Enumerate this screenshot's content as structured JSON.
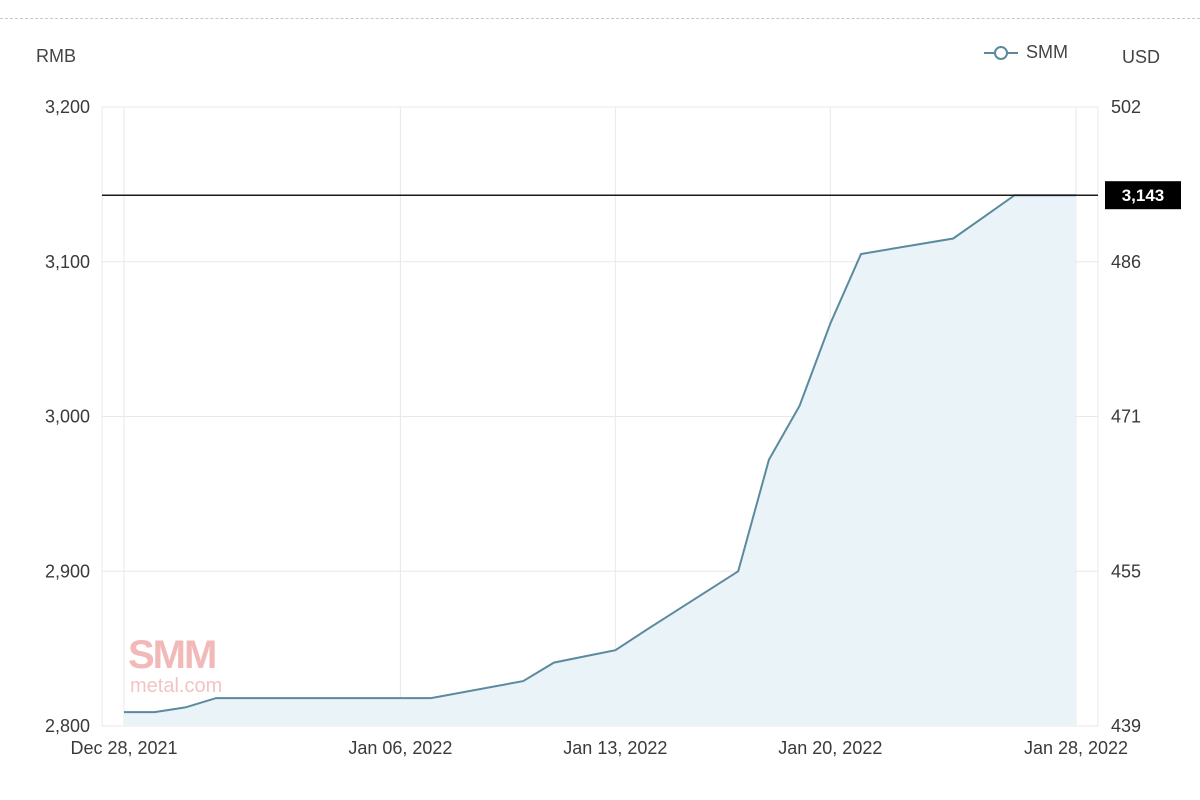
{
  "labels": {
    "left_unit": "RMB",
    "right_unit": "USD"
  },
  "legend": {
    "label": "SMM",
    "icon": "circle-line-icon"
  },
  "watermark": {
    "brand": "SMM",
    "domain": "metal.com"
  },
  "colors": {
    "line": "#5b8a9e",
    "area_fill": "#eaf3f7",
    "grid": "#e8e8e8",
    "reference_line": "#1a1a1a",
    "badge_bg": "#000000",
    "badge_text": "#ffffff"
  },
  "chart_data": {
    "type": "area",
    "series": [
      {
        "name": "SMM",
        "x": [
          "2021-12-28",
          "2021-12-29",
          "2021-12-30",
          "2021-12-31",
          "2022-01-04",
          "2022-01-05",
          "2022-01-06",
          "2022-01-07",
          "2022-01-10",
          "2022-01-11",
          "2022-01-12",
          "2022-01-13",
          "2022-01-14",
          "2022-01-17",
          "2022-01-18",
          "2022-01-19",
          "2022-01-20",
          "2022-01-21",
          "2022-01-24",
          "2022-01-25",
          "2022-01-26",
          "2022-01-27",
          "2022-01-28"
        ],
        "values": [
          2809,
          2809,
          2812,
          2818,
          2818,
          2818,
          2818,
          2818,
          2829,
          2841,
          2845,
          2849,
          2862,
          2900,
          2972,
          3007,
          3060,
          3105,
          3115,
          3129,
          3143,
          3143,
          3143
        ]
      }
    ],
    "x_range": [
      "2021-12-28",
      "2022-01-28"
    ],
    "x_ticks": [
      "Dec 28, 2021",
      "Jan 06, 2022",
      "Jan 13, 2022",
      "Jan 20, 2022",
      "Jan 28, 2022"
    ],
    "x_tick_dates": [
      "2021-12-28",
      "2022-01-06",
      "2022-01-13",
      "2022-01-20",
      "2022-01-28"
    ],
    "y_left": {
      "label": "RMB",
      "range": [
        2800,
        3200
      ],
      "ticks": [
        "3,200",
        "3,100",
        "3,000",
        "2,900",
        "2,800"
      ],
      "tick_values": [
        3200,
        3100,
        3000,
        2900,
        2800
      ]
    },
    "y_right": {
      "label": "USD",
      "ticks": [
        "502",
        "486",
        "471",
        "455",
        "439"
      ]
    },
    "reference_line": {
      "value": 3143,
      "label": "3,143"
    },
    "grid": true,
    "legend_position": "top-right"
  }
}
